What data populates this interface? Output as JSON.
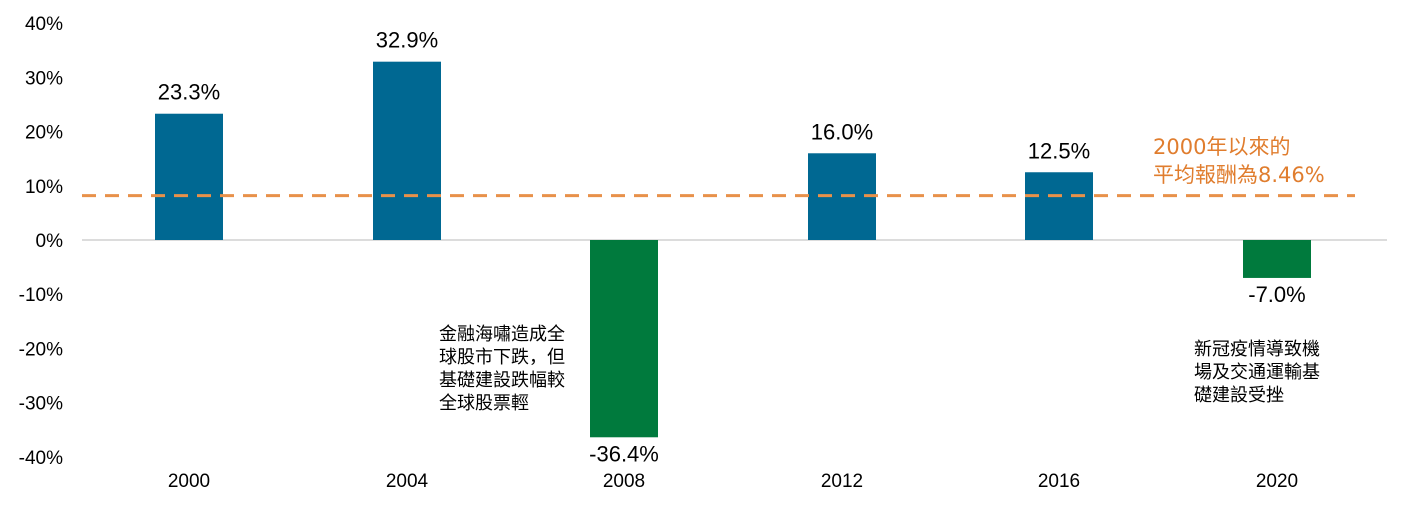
{
  "chart_data": {
    "type": "bar",
    "categories": [
      "2000",
      "2004",
      "2008",
      "2012",
      "2016",
      "2020"
    ],
    "values": [
      23.3,
      32.9,
      -36.4,
      16.0,
      12.5,
      -7.0
    ],
    "data_labels": [
      "23.3%",
      "32.9%",
      "-36.4%",
      "16.0%",
      "12.5%",
      "-7.0%"
    ],
    "ylim": [
      -40,
      40
    ],
    "yticks": [
      40,
      30,
      20,
      10,
      0,
      -10,
      -20,
      -30,
      -40
    ],
    "ytick_labels": [
      "40%",
      "30%",
      "20%",
      "10%",
      "0%",
      "-10%",
      "-20%",
      "-30%",
      "-40%"
    ],
    "colors": {
      "positive": "#006892",
      "negative": "#007a3d",
      "average_line": "#e8914a",
      "average_text": "#e07d2e",
      "axis": "#d0d0d0"
    },
    "reference_line": {
      "value": 8.46,
      "label_lines": [
        "2000年以來的",
        "平均報酬為8.46%"
      ]
    },
    "annotations": [
      {
        "category": "2008",
        "lines": [
          "金融海嘯造成全",
          "球股市下跌，但",
          "基礎建設跌幅較",
          "全球股票輕"
        ]
      },
      {
        "category": "2020",
        "lines": [
          "新冠疫情導致機",
          "場及交通運輸基",
          "礎建設受挫"
        ]
      }
    ],
    "grid": false,
    "legend": "none"
  }
}
